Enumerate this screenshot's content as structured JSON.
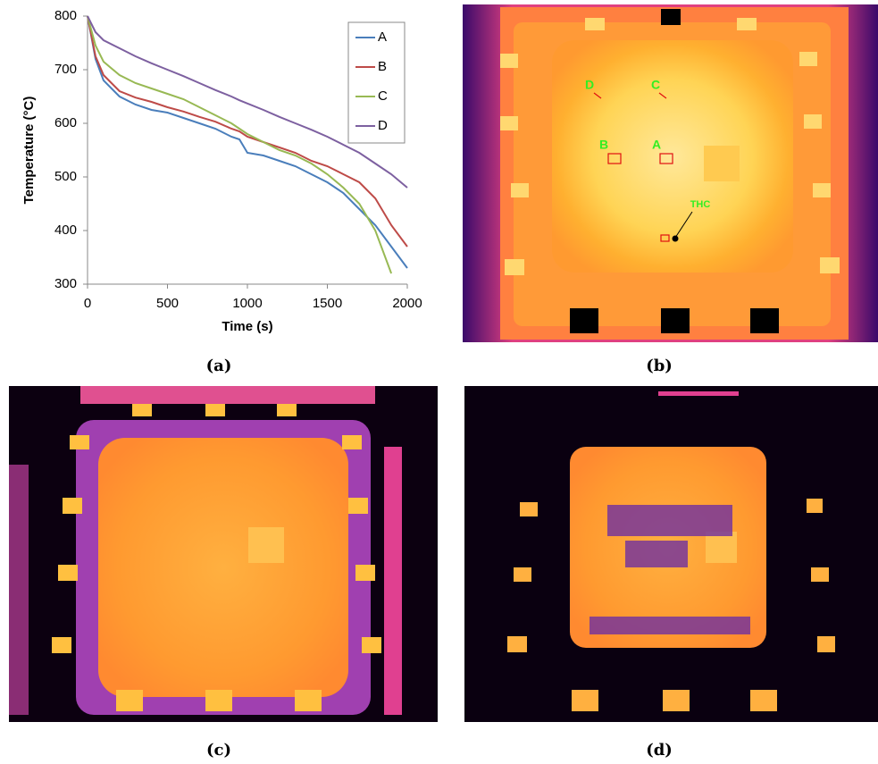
{
  "chart_data": {
    "type": "line",
    "xlabel": "Time (s)",
    "ylabel": "Temperature (°C)",
    "x": [
      0,
      50,
      100,
      200,
      300,
      400,
      500,
      600,
      700,
      800,
      900,
      950,
      1000,
      1100,
      1200,
      1300,
      1400,
      1500,
      1600,
      1700,
      1800,
      1900,
      2000
    ],
    "series": [
      {
        "name": "A",
        "color": "#4a7ebb",
        "values": [
          800,
          720,
          680,
          650,
          635,
          625,
          620,
          610,
          600,
          590,
          575,
          570,
          545,
          540,
          530,
          520,
          505,
          490,
          470,
          440,
          410,
          370,
          330
        ]
      },
      {
        "name": "B",
        "color": "#be4b48",
        "values": [
          800,
          725,
          690,
          660,
          648,
          640,
          630,
          622,
          612,
          603,
          590,
          585,
          575,
          565,
          555,
          545,
          530,
          520,
          505,
          490,
          460,
          410,
          370
        ]
      },
      {
        "name": "C",
        "color": "#98b954",
        "values": [
          800,
          745,
          715,
          690,
          675,
          665,
          655,
          645,
          630,
          615,
          600,
          590,
          580,
          565,
          550,
          540,
          525,
          505,
          480,
          450,
          400,
          320,
          null
        ]
      },
      {
        "name": "D",
        "color": "#7d60a0",
        "values": [
          800,
          770,
          755,
          740,
          725,
          712,
          700,
          688,
          675,
          662,
          650,
          643,
          637,
          625,
          612,
          600,
          588,
          575,
          560,
          545,
          525,
          505,
          480
        ]
      }
    ],
    "xlim": [
      0,
      2000
    ],
    "xticks": [
      0,
      500,
      1000,
      1500,
      2000
    ],
    "ylim": [
      300,
      800
    ],
    "yticks": [
      300,
      400,
      500,
      600,
      700,
      800
    ],
    "grid": false,
    "legend": "top-right"
  },
  "image_b": {
    "labels": [
      "D",
      "C",
      "B",
      "A",
      "THC"
    ]
  },
  "captions": [
    "(a)",
    "(b)",
    "(c)",
    "(d)"
  ]
}
